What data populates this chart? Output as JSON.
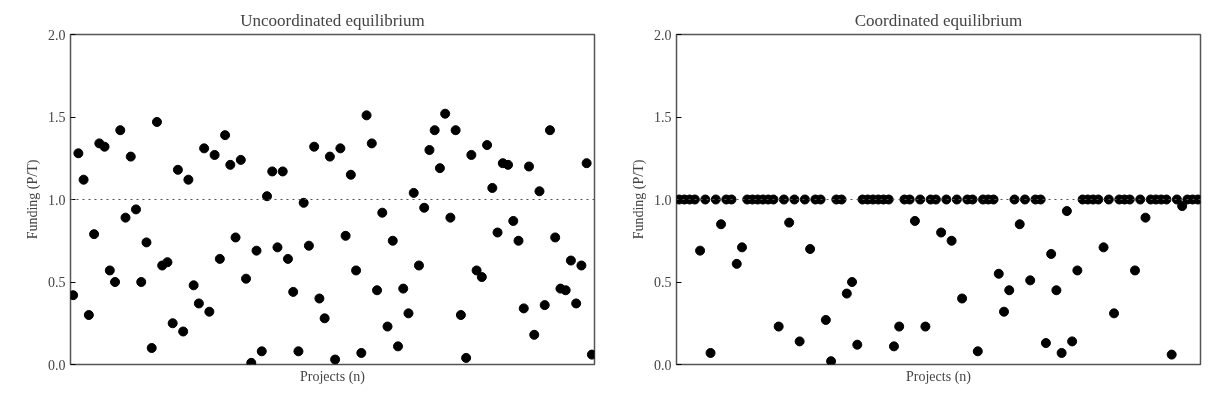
{
  "chart_data": [
    {
      "type": "scatter",
      "title": "Uncoordinated equilibrium",
      "xlabel": "Projects (n)",
      "ylabel": "Funding (P/T)",
      "categories": [
        null,
        null,
        null,
        null,
        null,
        null,
        null,
        null,
        null,
        null,
        null,
        null,
        null,
        null,
        null,
        null,
        null,
        null,
        null,
        null,
        null,
        null,
        null,
        null,
        null,
        null,
        null,
        null,
        null,
        null,
        null,
        null,
        null,
        null,
        null,
        null,
        null,
        null,
        null,
        null,
        null,
        null,
        null,
        null,
        null,
        null,
        null,
        null,
        null,
        null,
        null,
        null,
        null,
        null,
        null,
        null,
        null,
        null,
        null,
        null,
        null,
        null,
        null,
        null,
        null,
        null,
        null,
        null,
        null,
        null,
        null,
        null,
        null,
        null,
        null,
        null,
        null,
        null,
        null,
        null,
        null,
        null,
        null,
        null,
        null,
        null,
        null,
        null,
        null,
        null,
        null,
        null,
        null,
        null,
        null,
        null,
        null,
        null,
        null,
        null
      ],
      "series": [
        {
          "color": "#000000",
          "values": [
            0.42,
            1.28,
            1.12,
            0.3,
            0.79,
            1.34,
            1.32,
            0.57,
            0.5,
            1.42,
            0.89,
            1.26,
            0.94,
            0.5,
            0.74,
            0.1,
            1.47,
            0.6,
            0.62,
            0.25,
            1.18,
            0.2,
            1.12,
            0.48,
            0.37,
            1.31,
            0.32,
            1.27,
            0.64,
            1.39,
            1.21,
            0.77,
            1.24,
            0.52,
            0.01,
            0.69,
            0.08,
            1.02,
            1.17,
            0.71,
            1.17,
            0.64,
            0.44,
            0.08,
            0.98,
            0.72,
            1.32,
            0.4,
            0.28,
            1.26,
            0.03,
            1.31,
            0.78,
            1.15,
            0.57,
            0.07,
            1.51,
            1.34,
            0.45,
            0.92,
            0.23,
            0.75,
            0.11,
            0.46,
            0.31,
            1.04,
            0.6,
            0.95,
            1.3,
            1.42,
            1.19,
            1.52,
            0.89,
            1.42,
            0.3,
            0.04,
            1.27,
            0.57,
            0.53,
            1.33,
            1.07,
            0.8,
            1.22,
            1.21,
            0.87,
            0.75,
            0.34,
            1.2,
            0.18,
            1.05,
            0.36,
            1.42,
            0.77,
            0.46,
            0.45,
            0.63,
            0.37,
            0.6,
            1.22,
            0.06
          ]
        }
      ],
      "ylim": [
        0,
        2
      ],
      "yticks": [
        {
          "value": 0,
          "label": "0.0"
        },
        {
          "value": 0.5,
          "label": "0.5"
        },
        {
          "value": 1,
          "label": "1.0"
        },
        {
          "value": 1.5,
          "label": "1.5"
        },
        {
          "value": 2,
          "label": "2.0"
        }
      ],
      "ref_lines": [
        {
          "axis": "y",
          "value": 1,
          "line_style": "dotted"
        }
      ],
      "marker": "circle",
      "grid": false,
      "tick_labels": "y"
    },
    {
      "type": "scatter",
      "title": "Coordinated equilibrium",
      "xlabel": "Projects (n)",
      "ylabel": "Funding (P/T)",
      "categories": [
        null,
        null,
        null,
        null,
        null,
        null,
        null,
        null,
        null,
        null,
        null,
        null,
        null,
        null,
        null,
        null,
        null,
        null,
        null,
        null,
        null,
        null,
        null,
        null,
        null,
        null,
        null,
        null,
        null,
        null,
        null,
        null,
        null,
        null,
        null,
        null,
        null,
        null,
        null,
        null,
        null,
        null,
        null,
        null,
        null,
        null,
        null,
        null,
        null,
        null,
        null,
        null,
        null,
        null,
        null,
        null,
        null,
        null,
        null,
        null,
        null,
        null,
        null,
        null,
        null,
        null,
        null,
        null,
        null,
        null,
        null,
        null,
        null,
        null,
        null,
        null,
        null,
        null,
        null,
        null,
        null,
        null,
        null,
        null,
        null,
        null,
        null,
        null,
        null,
        null,
        null,
        null,
        null,
        null,
        null,
        null,
        null,
        null,
        null,
        null
      ],
      "series": [
        {
          "color": "#000000",
          "values": [
            1,
            1,
            1,
            1,
            0.69,
            1,
            0.07,
            1,
            0.85,
            1,
            1,
            0.61,
            0.71,
            1,
            1,
            1,
            1,
            1,
            1,
            0.23,
            1,
            0.86,
            1,
            0.14,
            1,
            0.7,
            1,
            1,
            0.27,
            0.02,
            1,
            1,
            0.43,
            0.5,
            0.12,
            1,
            1,
            1,
            1,
            1,
            1,
            0.11,
            0.23,
            1,
            1,
            0.87,
            1,
            0.23,
            1,
            1,
            0.8,
            1,
            0.75,
            1,
            0.4,
            1,
            1,
            0.08,
            1,
            1,
            1,
            0.55,
            0.32,
            0.45,
            1,
            0.85,
            1,
            0.51,
            1,
            1,
            0.13,
            0.67,
            0.45,
            0.07,
            0.93,
            0.14,
            0.57,
            1,
            1,
            1,
            1,
            0.71,
            1,
            0.31,
            1,
            1,
            1,
            0.57,
            1,
            0.89,
            1,
            1,
            1,
            1,
            0.06,
            1,
            0.96,
            1,
            1,
            1
          ]
        }
      ],
      "ylim": [
        0,
        2
      ],
      "yticks": [
        {
          "value": 0,
          "label": "0.0"
        },
        {
          "value": 0.5,
          "label": "0.5"
        },
        {
          "value": 1,
          "label": "1.0"
        },
        {
          "value": 1.5,
          "label": "1.5"
        },
        {
          "value": 2,
          "label": "2.0"
        }
      ],
      "ref_lines": [
        {
          "axis": "y",
          "value": 1,
          "line_style": "dotted"
        }
      ],
      "marker": "circle",
      "grid": false,
      "tick_labels": "y"
    }
  ]
}
